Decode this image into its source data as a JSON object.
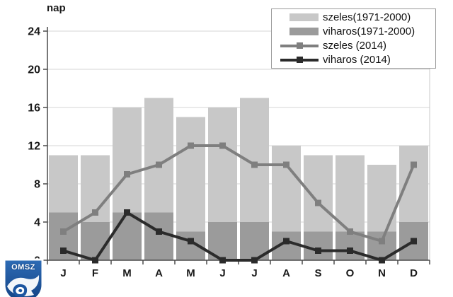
{
  "ylabel": "nap",
  "logo": {
    "text": "OMSZ"
  },
  "legend": {
    "items": [
      {
        "label": "szeles(1971-2000)",
        "type": "bar",
        "color": "#c8c8c8"
      },
      {
        "label": "viharos(1971-2000)",
        "type": "bar",
        "color": "#9b9b9b"
      },
      {
        "label": "szeles (2014)",
        "type": "line",
        "color": "#7f7f7f"
      },
      {
        "label": "viharos (2014)",
        "type": "line",
        "color": "#2b2b2b"
      }
    ]
  },
  "chart_data": {
    "type": "bar+line",
    "title": "",
    "ylabel": "nap",
    "xlabel": "",
    "categories": [
      "J",
      "F",
      "M",
      "A",
      "M",
      "J",
      "J",
      "A",
      "S",
      "O",
      "N",
      "D"
    ],
    "series": [
      {
        "name": "szeles(1971-2000)",
        "kind": "bar",
        "color": "#c8c8c8",
        "values": [
          11,
          11,
          16,
          17,
          15,
          16,
          17,
          12,
          11,
          11,
          10,
          12
        ]
      },
      {
        "name": "viharos(1971-2000)",
        "kind": "bar",
        "color": "#9b9b9b",
        "values": [
          5,
          4,
          5,
          5,
          3,
          4,
          4,
          3,
          3,
          3,
          3,
          4
        ]
      },
      {
        "name": "szeles (2014)",
        "kind": "line",
        "color": "#7f7f7f",
        "values": [
          3,
          5,
          9,
          10,
          12,
          12,
          10,
          10,
          6,
          3,
          2,
          10
        ]
      },
      {
        "name": "viharos (2014)",
        "kind": "line",
        "color": "#2b2b2b",
        "values": [
          1,
          0,
          5,
          3,
          2,
          0,
          0,
          2,
          1,
          1,
          0,
          2
        ]
      }
    ],
    "ylim": [
      0,
      24
    ],
    "y_ticks": [
      0,
      4,
      8,
      12,
      16,
      20,
      24
    ],
    "grid": true,
    "legend_position": "top-right",
    "colors": {
      "grid": "#d4d4d4",
      "axis": "#4a4a4a",
      "plot_border": "#c9c9c9",
      "tick_label": "#1a1a1a"
    }
  }
}
